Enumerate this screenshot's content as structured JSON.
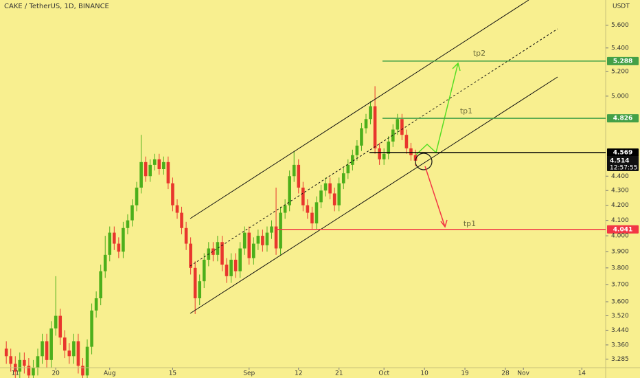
{
  "chart_data": {
    "type": "candlestick",
    "title": "CAKE / TetherUS, 1D, BINANCE",
    "y_unit": "USDT",
    "log_scale": true,
    "up_color": "#4caf1b",
    "down_color": "#e8362d",
    "background": "#f8ef8f",
    "x": [
      8,
      9,
      10,
      11,
      12,
      13,
      14,
      15,
      16,
      17,
      18,
      19,
      20,
      21,
      22,
      23,
      24,
      25,
      26,
      27,
      28,
      29,
      30,
      31,
      32,
      33,
      34,
      35,
      36,
      37,
      38,
      39,
      40,
      41,
      42,
      43,
      44,
      45,
      46,
      47,
      48,
      49,
      50,
      51,
      52,
      53,
      54,
      55,
      56,
      57,
      58,
      59,
      60,
      61,
      62,
      63,
      64,
      65,
      66,
      67,
      68,
      69,
      70,
      71,
      72,
      73,
      74,
      75,
      76,
      77,
      78,
      79,
      80,
      81,
      82,
      83,
      84,
      85,
      86,
      87,
      88,
      89,
      90,
      91,
      92,
      93,
      94,
      95,
      96,
      97,
      98,
      99
    ],
    "open": [
      3.34,
      3.3,
      3.26,
      3.22,
      3.28,
      3.25,
      3.2,
      3.24,
      3.3,
      3.38,
      3.28,
      3.45,
      3.52,
      3.4,
      3.33,
      3.3,
      3.38,
      3.25,
      3.2,
      3.35,
      3.55,
      3.62,
      3.78,
      3.88,
      4.02,
      3.95,
      3.9,
      4.05,
      4.1,
      4.2,
      4.32,
      4.5,
      4.4,
      4.48,
      4.52,
      4.45,
      4.5,
      4.35,
      4.2,
      4.15,
      4.05,
      3.95,
      3.8,
      3.62,
      3.72,
      3.85,
      3.92,
      3.88,
      3.96,
      3.82,
      3.75,
      3.85,
      3.78,
      3.92,
      4.02,
      3.86,
      3.95,
      4.0,
      3.94,
      4.02,
      4.06,
      3.92,
      4.15,
      4.2,
      4.4,
      4.48,
      4.32,
      4.2,
      4.15,
      4.08,
      4.22,
      4.3,
      4.35,
      4.28,
      4.2,
      4.35,
      4.42,
      4.48,
      4.55,
      4.62,
      4.75,
      4.82,
      4.92,
      4.6,
      4.52,
      4.56,
      4.65,
      4.74,
      4.82,
      4.7,
      4.6,
      4.55
    ],
    "high": [
      3.38,
      3.34,
      3.3,
      3.32,
      3.32,
      3.29,
      3.28,
      3.34,
      3.42,
      3.42,
      3.49,
      3.75,
      3.56,
      3.44,
      3.37,
      3.42,
      3.42,
      3.29,
      3.39,
      3.59,
      3.66,
      3.82,
      4.0,
      4.06,
      4.06,
      3.99,
      4.09,
      4.14,
      4.24,
      4.36,
      4.7,
      4.54,
      4.52,
      4.56,
      4.56,
      4.54,
      4.54,
      4.39,
      4.24,
      4.19,
      4.09,
      3.99,
      3.84,
      3.76,
      3.89,
      3.96,
      3.96,
      4.0,
      4.0,
      3.86,
      3.89,
      3.89,
      3.96,
      4.06,
      4.06,
      3.99,
      4.04,
      4.04,
      4.06,
      4.1,
      4.32,
      4.19,
      4.24,
      4.44,
      4.58,
      4.52,
      4.36,
      4.24,
      4.19,
      4.26,
      4.34,
      4.39,
      4.39,
      4.32,
      4.39,
      4.46,
      4.52,
      4.59,
      4.66,
      4.79,
      4.86,
      4.96,
      5.08,
      4.64,
      4.6,
      4.69,
      4.78,
      4.86,
      4.86,
      4.74,
      4.64,
      4.59
    ],
    "low": [
      3.26,
      3.22,
      3.18,
      3.18,
      3.21,
      3.16,
      3.16,
      3.2,
      3.26,
      3.24,
      3.24,
      3.41,
      3.36,
      3.29,
      3.26,
      3.26,
      3.21,
      3.16,
      3.16,
      3.31,
      3.51,
      3.58,
      3.74,
      3.84,
      3.91,
      3.86,
      3.86,
      4.01,
      4.06,
      4.16,
      4.28,
      4.36,
      4.36,
      4.44,
      4.41,
      4.41,
      4.31,
      4.16,
      4.11,
      4.01,
      3.91,
      3.76,
      3.53,
      3.58,
      3.68,
      3.81,
      3.84,
      3.84,
      3.78,
      3.71,
      3.71,
      3.74,
      3.74,
      3.88,
      3.82,
      3.82,
      3.91,
      3.9,
      3.9,
      3.98,
      3.88,
      3.88,
      4.11,
      4.16,
      4.36,
      4.28,
      4.16,
      4.11,
      4.04,
      4.04,
      4.18,
      4.26,
      4.24,
      4.16,
      4.16,
      4.31,
      4.38,
      4.44,
      4.51,
      4.58,
      4.71,
      4.78,
      4.56,
      4.48,
      4.48,
      4.52,
      4.61,
      4.7,
      4.66,
      4.56,
      4.51,
      4.47
    ],
    "close": [
      3.3,
      3.26,
      3.22,
      3.28,
      3.25,
      3.2,
      3.24,
      3.3,
      3.38,
      3.28,
      3.45,
      3.52,
      3.4,
      3.33,
      3.3,
      3.38,
      3.25,
      3.2,
      3.35,
      3.55,
      3.62,
      3.78,
      3.88,
      4.02,
      3.95,
      3.9,
      4.05,
      4.1,
      4.2,
      4.32,
      4.5,
      4.4,
      4.48,
      4.52,
      4.45,
      4.5,
      4.35,
      4.2,
      4.15,
      4.05,
      3.95,
      3.8,
      3.62,
      3.72,
      3.85,
      3.92,
      3.88,
      3.96,
      3.82,
      3.75,
      3.85,
      3.78,
      3.92,
      4.02,
      3.86,
      3.95,
      4.0,
      3.94,
      4.02,
      4.06,
      3.92,
      4.15,
      4.2,
      4.4,
      4.48,
      4.32,
      4.2,
      4.15,
      4.08,
      4.22,
      4.3,
      4.35,
      4.28,
      4.2,
      4.35,
      4.42,
      4.48,
      4.55,
      4.62,
      4.75,
      4.82,
      4.92,
      4.6,
      4.52,
      4.56,
      4.65,
      4.74,
      4.82,
      4.7,
      4.6,
      4.55,
      4.51
    ],
    "xlim": [
      6.6,
      141.3
    ],
    "ylim": [
      3.24,
      5.83
    ],
    "xticks": [
      {
        "value": 10,
        "label": "11"
      },
      {
        "value": 19,
        "label": "20"
      },
      {
        "value": 31,
        "label": "Aug"
      },
      {
        "value": 45,
        "label": "15"
      },
      {
        "value": 62,
        "label": "Sep"
      },
      {
        "value": 73,
        "label": "12"
      },
      {
        "value": 82,
        "label": "21"
      },
      {
        "value": 92,
        "label": "Oct"
      },
      {
        "value": 101,
        "label": "10"
      },
      {
        "value": 110,
        "label": "19"
      },
      {
        "value": 119,
        "label": "28"
      },
      {
        "value": 123,
        "label": "Nov"
      },
      {
        "value": 136,
        "label": "14"
      }
    ],
    "yticks": [
      {
        "value": 5.6,
        "label": "5.600"
      },
      {
        "value": 5.4,
        "label": "5.400"
      },
      {
        "value": 5.2,
        "label": "5.200"
      },
      {
        "value": 5.0,
        "label": "5.000"
      },
      {
        "value": 4.4,
        "label": "4.400"
      },
      {
        "value": 4.3,
        "label": "4.300"
      },
      {
        "value": 4.2,
        "label": "4.200"
      },
      {
        "value": 4.1,
        "label": "4.100"
      },
      {
        "value": 4.0,
        "label": "4.000"
      },
      {
        "value": 3.9,
        "label": "3.900"
      },
      {
        "value": 3.8,
        "label": "3.800"
      },
      {
        "value": 3.7,
        "label": "3.700"
      },
      {
        "value": 3.6,
        "label": "3.600"
      },
      {
        "value": 3.52,
        "label": "3.520"
      },
      {
        "value": 3.44,
        "label": "3.440"
      },
      {
        "value": 3.36,
        "label": "3.360"
      },
      {
        "value": 3.285,
        "label": "3.285"
      }
    ],
    "levels": [
      {
        "value": 5.288,
        "color": "#43a047"
      },
      {
        "value": 4.826,
        "color": "#43a047"
      },
      {
        "value": 4.569,
        "color": "#000000"
      },
      {
        "value": 4.041,
        "color": "#f23645"
      }
    ],
    "last_price": {
      "value": 4.514,
      "countdown": "12:57:55"
    },
    "annotations": [
      "tp2",
      "tp1",
      "tp1"
    ]
  }
}
